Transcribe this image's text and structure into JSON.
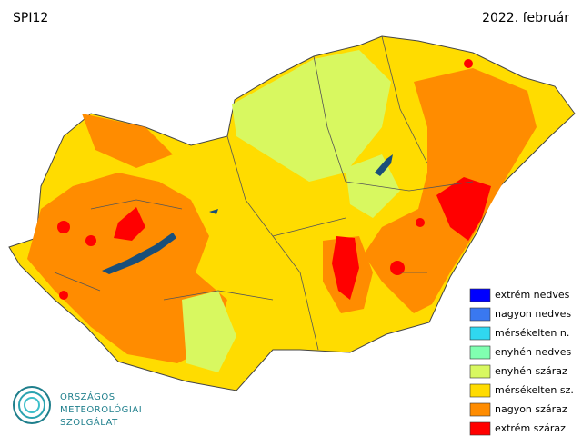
{
  "header": {
    "title": "SPI12",
    "date": "2022. február"
  },
  "legend": [
    {
      "label": "extrém nedves",
      "color": "#0000ff"
    },
    {
      "label": "nagyon nedves",
      "color": "#3a78f0"
    },
    {
      "label": "mérsékelten n.",
      "color": "#30d8f0"
    },
    {
      "label": "enyhén nedves",
      "color": "#80ffb0"
    },
    {
      "label": "enyhén száraz",
      "color": "#d8f860"
    },
    {
      "label": "mérsékelten sz.",
      "color": "#ffdc00"
    },
    {
      "label": "nagyon száraz",
      "color": "#ff8c00"
    },
    {
      "label": "extrém száraz",
      "color": "#ff0000"
    }
  ],
  "logo": {
    "lines": [
      "ORSZÁGOS",
      "METEOROLÓGIAI",
      "SZOLGÁLAT"
    ]
  }
}
